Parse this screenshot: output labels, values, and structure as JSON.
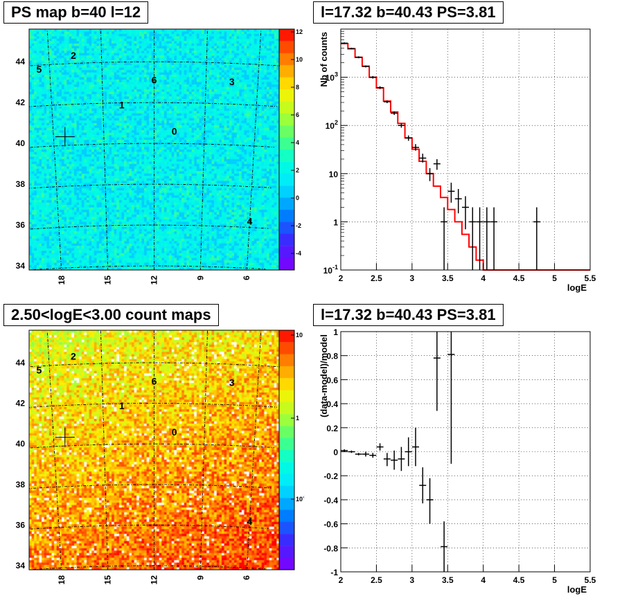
{
  "panels": {
    "top_left": {
      "title": "PS map b=40 l=12"
    },
    "top_right": {
      "title": "l=17.32 b=40.43 PS=3.81"
    },
    "bottom_left": {
      "title": "2.50<logE<3.00 count maps"
    },
    "bottom_right": {
      "title": "l=17.32 b=40.43 PS=3.81"
    }
  },
  "maps": {
    "lat_ticks": [
      "44",
      "42",
      "40",
      "38",
      "36",
      "34"
    ],
    "lon_ticks": [
      "18",
      "15",
      "12",
      "9",
      "6"
    ],
    "sources": [
      {
        "label": "0",
        "l": 10.8,
        "b": 40.6
      },
      {
        "label": "1",
        "l": 13.9,
        "b": 41.9
      },
      {
        "label": "2",
        "l": 16.6,
        "b": 44.4
      },
      {
        "label": "3",
        "l": 7.5,
        "b": 43.1
      },
      {
        "label": "4",
        "l": 6.0,
        "b": 36.3
      },
      {
        "label": "5",
        "l": 18.6,
        "b": 43.8
      },
      {
        "label": "6",
        "l": 12.0,
        "b": 43.1
      }
    ],
    "ps_colorbar_ticks": [
      "12",
      "10",
      "8",
      "6",
      "4",
      "2",
      "0",
      "-2",
      "-4"
    ],
    "count_colorbar_ticks": [
      "10",
      "1",
      "10^-1"
    ]
  },
  "chart_data": [
    {
      "type": "line",
      "panel": "spectrum",
      "xlabel": "logE",
      "ylabel": "Nb of counts",
      "xlim": [
        2,
        5.5
      ],
      "ylim": [
        0.1,
        10000
      ],
      "ylog": true,
      "x_ticks": [
        "2",
        "2.5",
        "3",
        "3.5",
        "4",
        "4.5",
        "5",
        "5.5"
      ],
      "y_ticks": [
        "10^-1",
        "1",
        "10",
        "10^2",
        "10^3"
      ],
      "grid": true,
      "model_step": {
        "edges": [
          2.0,
          2.1,
          2.2,
          2.3,
          2.4,
          2.5,
          2.6,
          2.7,
          2.8,
          2.9,
          3.0,
          3.1,
          3.2,
          3.3,
          3.4,
          3.5,
          3.6,
          3.7,
          3.8,
          3.9,
          4.0,
          5.5
        ],
        "values": [
          5000,
          3900,
          2600,
          1700,
          1000,
          600,
          320,
          190,
          110,
          55,
          32,
          18,
          10,
          5.5,
          3.2,
          1.8,
          1.0,
          0.55,
          0.3,
          0.16,
          0.1
        ]
      },
      "data_points": [
        {
          "x": 2.05,
          "y": 5100,
          "ylo": 4900,
          "yhi": 5300
        },
        {
          "x": 2.15,
          "y": 3950,
          "ylo": 3800,
          "yhi": 4100
        },
        {
          "x": 2.25,
          "y": 2600,
          "ylo": 2480,
          "yhi": 2720
        },
        {
          "x": 2.35,
          "y": 1680,
          "ylo": 1600,
          "yhi": 1760
        },
        {
          "x": 2.45,
          "y": 1000,
          "ylo": 940,
          "yhi": 1060
        },
        {
          "x": 2.55,
          "y": 610,
          "ylo": 570,
          "yhi": 650
        },
        {
          "x": 2.65,
          "y": 310,
          "ylo": 290,
          "yhi": 330
        },
        {
          "x": 2.75,
          "y": 180,
          "ylo": 165,
          "yhi": 195
        },
        {
          "x": 2.85,
          "y": 100,
          "ylo": 90,
          "yhi": 110
        },
        {
          "x": 2.95,
          "y": 55,
          "ylo": 48,
          "yhi": 62
        },
        {
          "x": 3.05,
          "y": 35,
          "ylo": 30,
          "yhi": 41
        },
        {
          "x": 3.15,
          "y": 21,
          "ylo": 17,
          "yhi": 26
        },
        {
          "x": 3.25,
          "y": 10,
          "ylo": 7,
          "yhi": 13
        },
        {
          "x": 3.35,
          "y": 16,
          "ylo": 12,
          "yhi": 20
        },
        {
          "x": 3.45,
          "y": 1,
          "ylo": 0.1,
          "yhi": 2
        },
        {
          "x": 3.55,
          "y": 4.3,
          "ylo": 2.5,
          "yhi": 6.5
        },
        {
          "x": 3.65,
          "y": 3,
          "ylo": 1.5,
          "yhi": 4.8
        },
        {
          "x": 3.75,
          "y": 2,
          "ylo": 0.7,
          "yhi": 3.4
        },
        {
          "x": 3.85,
          "y": 1,
          "ylo": 0.1,
          "yhi": 2
        },
        {
          "x": 3.95,
          "y": 1,
          "ylo": 0.1,
          "yhi": 2
        },
        {
          "x": 4.05,
          "y": 1,
          "ylo": 0.1,
          "yhi": 2
        },
        {
          "x": 4.15,
          "y": 1,
          "ylo": 0.1,
          "yhi": 2
        },
        {
          "x": 4.75,
          "y": 1,
          "ylo": 0.1,
          "yhi": 2
        }
      ],
      "colors": {
        "model": "#ff0000",
        "data": "#000000"
      }
    },
    {
      "type": "scatter",
      "panel": "residuals",
      "xlabel": "logE",
      "ylabel": "(data-model)/model",
      "xlim": [
        2,
        5.5
      ],
      "ylim": [
        -1,
        1
      ],
      "x_ticks": [
        "2",
        "2.5",
        "3",
        "3.5",
        "4",
        "4.5",
        "5",
        "5.5"
      ],
      "y_ticks": [
        "-1",
        "-0.8",
        "-0.6",
        "-0.4",
        "-0.2",
        "0",
        "0.2",
        "0.4",
        "0.6",
        "0.8",
        "1"
      ],
      "grid": true,
      "data_points": [
        {
          "x": 2.05,
          "y": 0.01,
          "ylo": 0.0,
          "yhi": 0.02
        },
        {
          "x": 2.15,
          "y": 0.0,
          "ylo": -0.01,
          "yhi": 0.01
        },
        {
          "x": 2.25,
          "y": -0.02,
          "ylo": -0.03,
          "yhi": -0.01
        },
        {
          "x": 2.35,
          "y": -0.02,
          "ylo": -0.04,
          "yhi": 0.0
        },
        {
          "x": 2.45,
          "y": -0.03,
          "ylo": -0.05,
          "yhi": -0.01
        },
        {
          "x": 2.55,
          "y": 0.04,
          "ylo": 0.01,
          "yhi": 0.07
        },
        {
          "x": 2.65,
          "y": -0.06,
          "ylo": -0.12,
          "yhi": -0.01
        },
        {
          "x": 2.75,
          "y": -0.07,
          "ylo": -0.15,
          "yhi": 0.01
        },
        {
          "x": 2.85,
          "y": -0.06,
          "ylo": -0.16,
          "yhi": 0.04
        },
        {
          "x": 2.95,
          "y": 0.0,
          "ylo": -0.12,
          "yhi": 0.12
        },
        {
          "x": 3.05,
          "y": 0.04,
          "ylo": -0.12,
          "yhi": 0.2
        },
        {
          "x": 3.15,
          "y": -0.28,
          "ylo": -0.43,
          "yhi": -0.13
        },
        {
          "x": 3.25,
          "y": -0.4,
          "ylo": -0.6,
          "yhi": -0.22
        },
        {
          "x": 3.35,
          "y": 0.78,
          "ylo": 0.34,
          "yhi": 1.0
        },
        {
          "x": 3.45,
          "y": -0.79,
          "ylo": -1.0,
          "yhi": -0.58
        },
        {
          "x": 3.55,
          "y": 0.81,
          "ylo": -0.1,
          "yhi": 1.0
        }
      ]
    }
  ]
}
